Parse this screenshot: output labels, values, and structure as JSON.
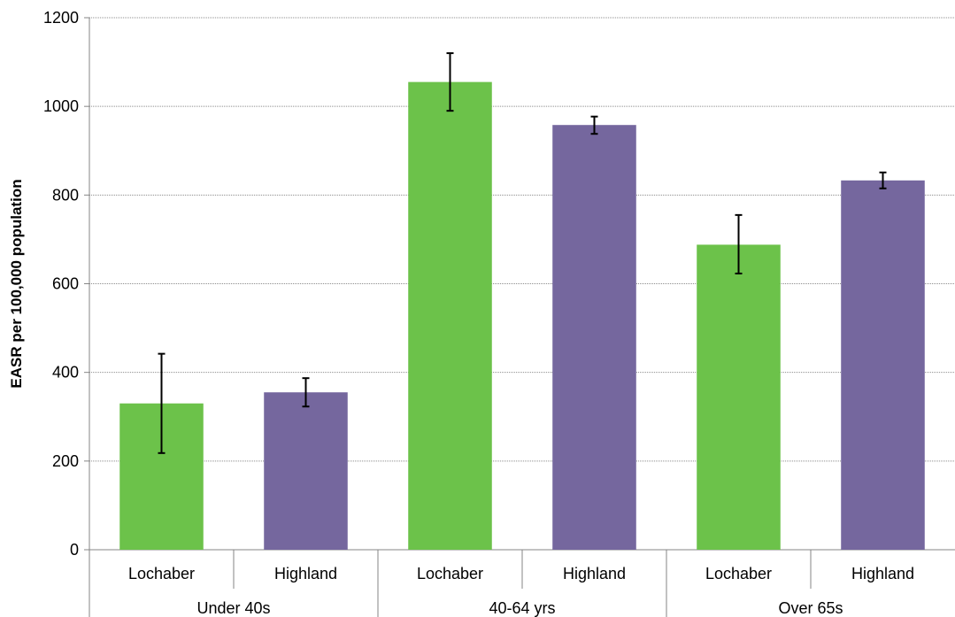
{
  "chart_data": {
    "type": "bar",
    "title": "",
    "ylabel": "EASR per 100,000 population",
    "xlabel": "",
    "ylim": [
      0,
      1200
    ],
    "yticks": [
      0,
      200,
      400,
      600,
      800,
      1000,
      1200
    ],
    "grid": true,
    "groups": [
      {
        "label": "Under 40s",
        "bars": [
          {
            "category": "Lochaber",
            "value": 330,
            "ci_low": 218,
            "ci_high": 442
          },
          {
            "category": "Highland",
            "value": 355,
            "ci_low": 323,
            "ci_high": 387
          }
        ]
      },
      {
        "label": "40-64 yrs",
        "bars": [
          {
            "category": "Lochaber",
            "value": 1055,
            "ci_low": 990,
            "ci_high": 1120
          },
          {
            "category": "Highland",
            "value": 958,
            "ci_low": 938,
            "ci_high": 977
          }
        ]
      },
      {
        "label": "Over 65s",
        "bars": [
          {
            "category": "Lochaber",
            "value": 688,
            "ci_low": 623,
            "ci_high": 755
          },
          {
            "category": "Highland",
            "value": 833,
            "ci_low": 815,
            "ci_high": 851
          }
        ]
      }
    ],
    "colors": {
      "Lochaber": "#6cc24a",
      "Highland": "#75679e"
    }
  }
}
